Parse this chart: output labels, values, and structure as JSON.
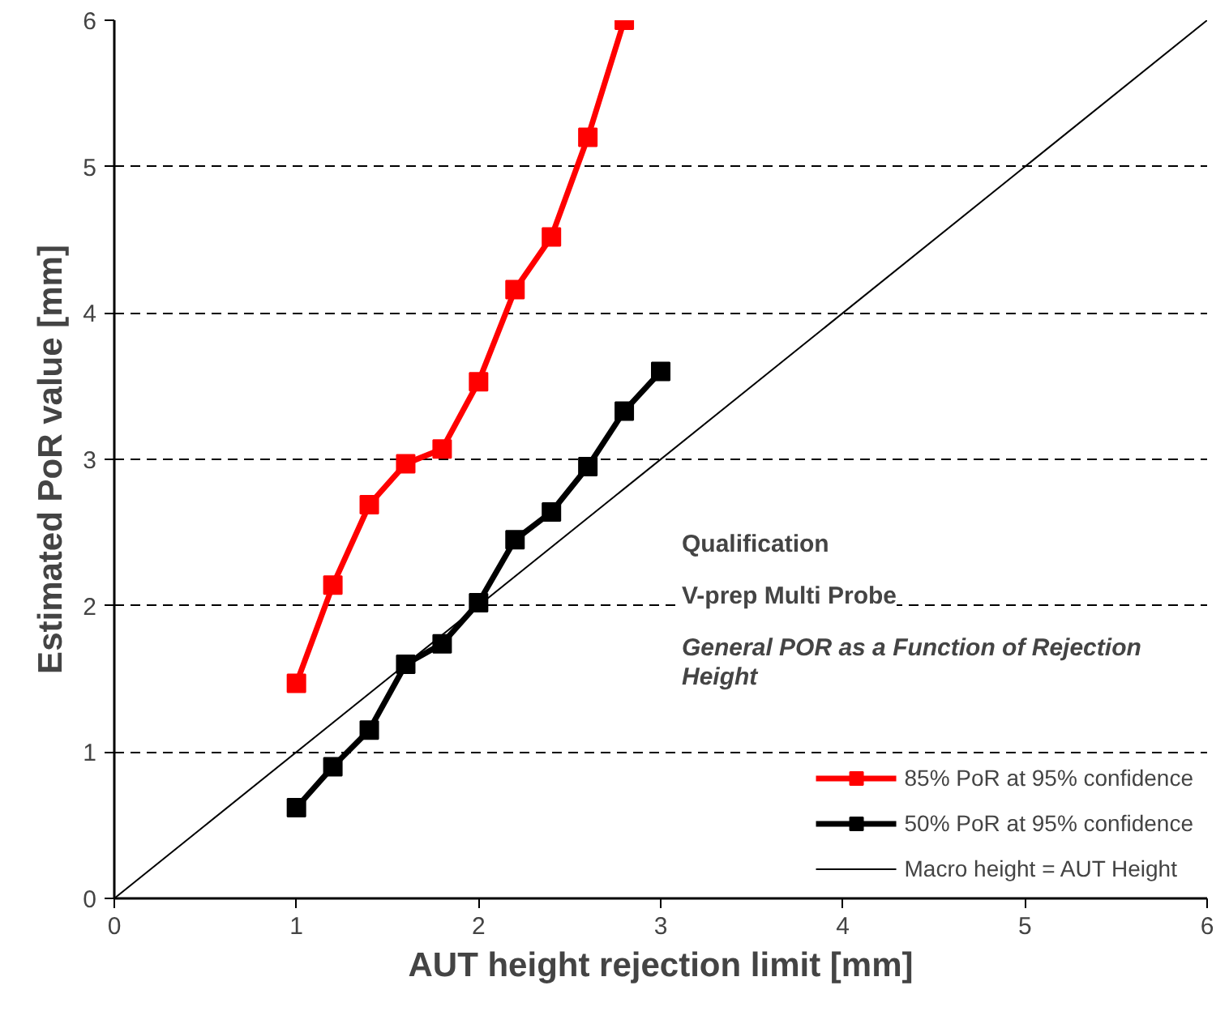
{
  "chart_data": {
    "type": "line",
    "title": "Qualification",
    "subtitle": "V-prep Multi Probe",
    "annotations": [
      "General POR as a Function of Rejection Height"
    ],
    "xlabel": "AUT height rejection limit [mm]",
    "ylabel": "Estimated PoR value [mm]",
    "xlim": [
      0,
      6
    ],
    "ylim": [
      0,
      6
    ],
    "xticks": [
      0,
      1,
      2,
      3,
      4,
      5,
      6
    ],
    "yticks": [
      0,
      1,
      2,
      3,
      4,
      5,
      6
    ],
    "grid": "y",
    "legend": "bottom right",
    "marker": "square",
    "series": [
      {
        "name": "85% PoR at 95% confidence",
        "color": "#ff0000",
        "x": [
          1,
          1.2,
          1.4,
          1.6,
          1.8,
          2,
          2.2,
          2.4,
          2.6,
          2.8
        ],
        "values": [
          1.47,
          2.14,
          2.69,
          2.97,
          3.07,
          3.53,
          4.16,
          4.52,
          5.2,
          6.0
        ]
      },
      {
        "name": "50% PoR at 95% confidence",
        "color": "#000000",
        "x": [
          1,
          1.2,
          1.4,
          1.6,
          1.8,
          2,
          2.2,
          2.4,
          2.6,
          2.8,
          3
        ],
        "values": [
          0.62,
          0.9,
          1.15,
          1.6,
          1.74,
          2.02,
          2.45,
          2.64,
          2.95,
          3.33,
          3.6
        ]
      },
      {
        "name": "Macro height = AUT Height",
        "color": "#000000",
        "marker": "none",
        "x": [
          0,
          6
        ],
        "values": [
          0,
          6
        ]
      }
    ]
  }
}
